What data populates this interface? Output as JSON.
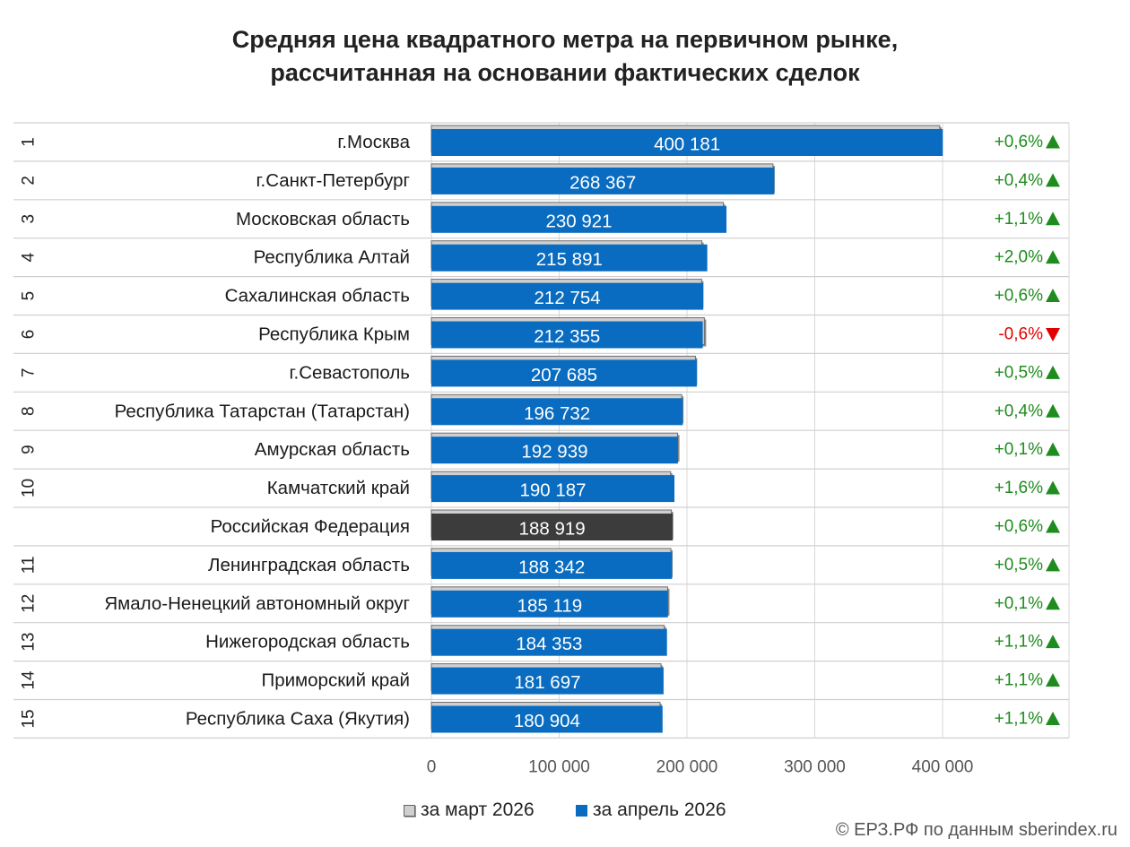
{
  "title_line1": "Средняя цена квадратного метра на первичном рынке,",
  "title_line2": "рассчитанная на основании фактических сделок",
  "legend": {
    "march": "за март 2026",
    "april": "за апрель 2026"
  },
  "credit": "© ЕРЗ.РФ по данным sberindex.ru",
  "colors": {
    "april_bar": "#0a6cc0",
    "federation_bar": "#3c3c3c",
    "march_bar": "#cfcfcf",
    "up": "#1e8c1e",
    "down": "#e00000"
  },
  "chart_data": {
    "type": "bar",
    "orientation": "horizontal",
    "title": "Средняя цена квадратного метра на первичном рынке, рассчитанная на основании фактических сделок",
    "xlim": [
      0,
      400000
    ],
    "x_ticks": [
      "0",
      "100 000",
      "200 000",
      "300 000",
      "400 000"
    ],
    "grid": true,
    "legend_position": "bottom",
    "series_names": [
      "за март 2026",
      "за апрель 2026"
    ],
    "rows": [
      {
        "rank": "1",
        "region": "г.Москва",
        "march": 397800,
        "april": 400181,
        "label": "400 181",
        "change": "+0,6%",
        "direction": "up"
      },
      {
        "rank": "2",
        "region": "г.Санкт-Петербург",
        "march": 267300,
        "april": 268367,
        "label": "268 367",
        "change": "+0,4%",
        "direction": "up"
      },
      {
        "rank": "3",
        "region": "Московская область",
        "march": 228400,
        "april": 230921,
        "label": "230 921",
        "change": "+1,1%",
        "direction": "up"
      },
      {
        "rank": "4",
        "region": "Республика Алтай",
        "march": 211700,
        "april": 215891,
        "label": "215 891",
        "change": "+2,0%",
        "direction": "up"
      },
      {
        "rank": "5",
        "region": "Сахалинская область",
        "march": 211500,
        "april": 212754,
        "label": "212 754",
        "change": "+0,6%",
        "direction": "up"
      },
      {
        "rank": "6",
        "region": "Республика Крым",
        "march": 213600,
        "april": 212355,
        "label": "212 355",
        "change": "-0,6%",
        "direction": "down"
      },
      {
        "rank": "7",
        "region": "г.Севастополь",
        "march": 206600,
        "april": 207685,
        "label": "207 685",
        "change": "+0,5%",
        "direction": "up"
      },
      {
        "rank": "8",
        "region": "Республика Татарстан (Татарстан)",
        "march": 195900,
        "april": 196732,
        "label": "196 732",
        "change": "+0,4%",
        "direction": "up"
      },
      {
        "rank": "9",
        "region": "Амурская область",
        "march": 192700,
        "april": 192939,
        "label": "192 939",
        "change": "+0,1%",
        "direction": "up"
      },
      {
        "rank": "10",
        "region": "Камчатский край",
        "march": 187200,
        "april": 190187,
        "label": "190 187",
        "change": "+1,6%",
        "direction": "up"
      },
      {
        "rank": "",
        "region": "Российская Федерация",
        "march": 187800,
        "april": 188919,
        "label": "188 919",
        "change": "+0,6%",
        "direction": "up",
        "highlight": true
      },
      {
        "rank": "11",
        "region": "Ленинградская область",
        "march": 187400,
        "april": 188342,
        "label": "188 342",
        "change": "+0,5%",
        "direction": "up"
      },
      {
        "rank": "12",
        "region": "Ямало-Ненецкий автономный округ",
        "march": 184900,
        "april": 185119,
        "label": "185 119",
        "change": "+0,1%",
        "direction": "up"
      },
      {
        "rank": "13",
        "region": "Нижегородская область",
        "march": 182300,
        "april": 184353,
        "label": "184 353",
        "change": "+1,1%",
        "direction": "up"
      },
      {
        "rank": "14",
        "region": "Приморский край",
        "march": 179700,
        "april": 181697,
        "label": "181 697",
        "change": "+1,1%",
        "direction": "up"
      },
      {
        "rank": "15",
        "region": "Республика Саха (Якутия)",
        "march": 178900,
        "april": 180904,
        "label": "180 904",
        "change": "+1,1%",
        "direction": "up"
      }
    ]
  }
}
